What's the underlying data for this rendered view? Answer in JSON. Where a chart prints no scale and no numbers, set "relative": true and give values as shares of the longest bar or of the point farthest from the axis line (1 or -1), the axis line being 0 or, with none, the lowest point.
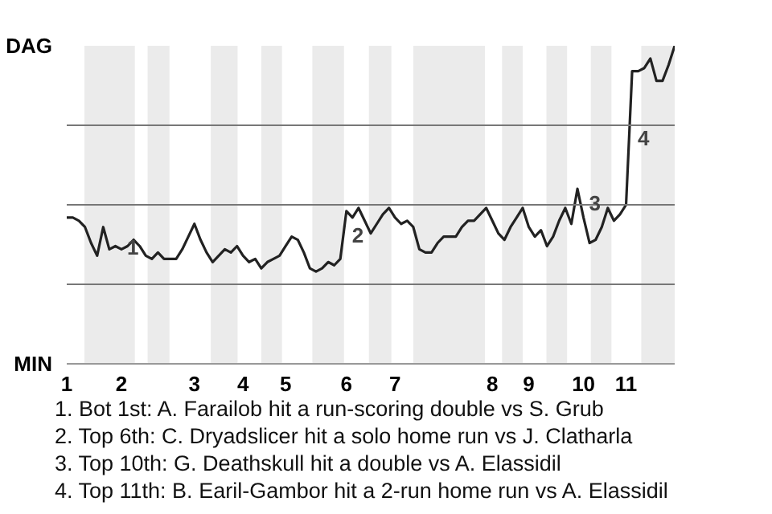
{
  "chart_data": {
    "type": "line",
    "relative": true,
    "categories": [
      "1",
      null,
      null,
      null,
      null,
      null,
      null,
      null,
      null,
      "2",
      null,
      null,
      null,
      null,
      null,
      null,
      null,
      null,
      null,
      null,
      null,
      "3",
      null,
      null,
      null,
      null,
      null,
      null,
      null,
      "4",
      null,
      null,
      null,
      null,
      null,
      null,
      "5",
      null,
      null,
      null,
      null,
      null,
      null,
      null,
      null,
      null,
      "6",
      null,
      null,
      null,
      null,
      null,
      null,
      null,
      "7",
      null,
      null,
      null,
      null,
      null,
      null,
      null,
      null,
      null,
      null,
      null,
      null,
      null,
      null,
      null,
      "8",
      null,
      null,
      null,
      null,
      null,
      "9",
      null,
      null,
      null,
      null,
      null,
      null,
      null,
      null,
      "10",
      null,
      null,
      null,
      null,
      null,
      null,
      "11",
      null,
      null,
      null,
      null,
      null,
      null,
      null,
      null
    ],
    "series": [
      {
        "color": "#222222",
        "values": [
          0.46,
          0.46,
          0.45,
          0.43,
          0.38,
          0.34,
          0.43,
          0.36,
          0.37,
          0.36,
          0.37,
          0.39,
          0.37,
          0.34,
          0.33,
          0.35,
          0.33,
          0.33,
          0.33,
          0.36,
          0.4,
          0.44,
          0.39,
          0.35,
          0.32,
          0.34,
          0.36,
          0.35,
          0.37,
          0.34,
          0.32,
          0.33,
          0.3,
          0.32,
          0.33,
          0.34,
          0.37,
          0.4,
          0.39,
          0.35,
          0.3,
          0.29,
          0.3,
          0.32,
          0.31,
          0.33,
          0.48,
          0.46,
          0.49,
          0.45,
          0.41,
          0.44,
          0.47,
          0.49,
          0.46,
          0.44,
          0.45,
          0.43,
          0.36,
          0.35,
          0.35,
          0.38,
          0.4,
          0.4,
          0.4,
          0.43,
          0.45,
          0.45,
          0.47,
          0.49,
          0.45,
          0.41,
          0.39,
          0.43,
          0.46,
          0.49,
          0.43,
          0.4,
          0.42,
          0.37,
          0.4,
          0.45,
          0.49,
          0.44,
          0.55,
          0.46,
          0.38,
          0.39,
          0.43,
          0.49,
          0.45,
          0.47,
          0.5,
          0.92,
          0.92,
          0.93,
          0.96,
          0.89,
          0.89,
          0.94,
          1.0
        ]
      }
    ],
    "grid": "y",
    "marker": "none",
    "line_style": "solid",
    "annotations": [
      "DAG",
      "MIN",
      "1",
      "2",
      "3",
      "4",
      "1. Bot 1st: A. Farailob hit a run-scoring double vs S. Grub",
      "2. Top 6th: C. Dryadslicer hit a solo home run vs J. Clatharla",
      "3. Top 10th: G. Deathskull hit a double vs A. Elassidil",
      "4. Top 11th: B. Earil-Gambor hit a 2-run home run vs A. Elassidil"
    ]
  }
}
